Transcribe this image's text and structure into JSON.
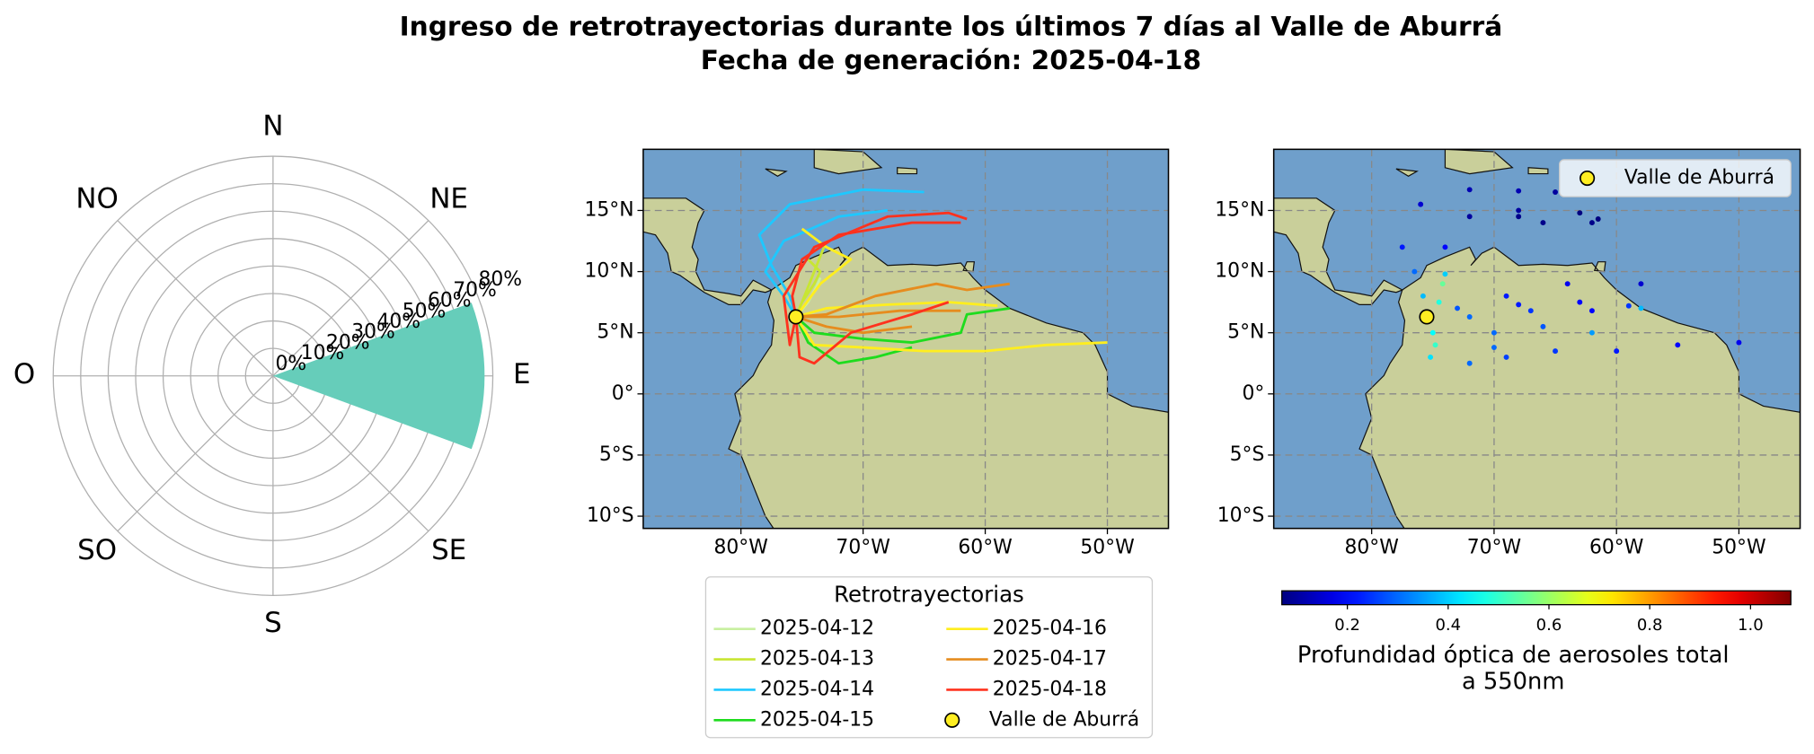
{
  "chart_data": [
    {
      "type": "polar_bar",
      "title": "Ingreso de retrotrayectorias durante los últimos 7 días al Valle de Aburrá",
      "subtitle": "Fecha de generación: 2025-04-18",
      "theta_labels": [
        "N",
        "NE",
        "E",
        "SE",
        "S",
        "SO",
        "O",
        "NO"
      ],
      "values": [
        0,
        0,
        77,
        0,
        0,
        0,
        0,
        0
      ],
      "color": "#66cdba",
      "rlim": [
        0,
        80
      ],
      "rticks": [
        {
          "value": 0,
          "label": "0%"
        },
        {
          "value": 10,
          "label": "10%"
        },
        {
          "value": 20,
          "label": "20%"
        },
        {
          "value": 30,
          "label": "30%"
        },
        {
          "value": 40,
          "label": "40%"
        },
        {
          "value": 50,
          "label": "50%"
        },
        {
          "value": 60,
          "label": "60%"
        },
        {
          "value": 70,
          "label": "70%"
        },
        {
          "value": 80,
          "label": "80%"
        }
      ],
      "grid": true
    },
    {
      "type": "trajectory_map",
      "xlim": [
        -88,
        -45
      ],
      "ylim": [
        -11,
        20
      ],
      "xticks": [
        {
          "value": -80,
          "label": "80°W"
        },
        {
          "value": -70,
          "label": "70°W"
        },
        {
          "value": -60,
          "label": "60°W"
        },
        {
          "value": -50,
          "label": "50°W"
        }
      ],
      "yticks": [
        {
          "value": 15,
          "label": "15°N"
        },
        {
          "value": 10,
          "label": "10°N"
        },
        {
          "value": 5,
          "label": "5°N"
        },
        {
          "value": 0,
          "label": "0°"
        },
        {
          "value": -5,
          "label": "5°S"
        },
        {
          "value": -10,
          "label": "10°S"
        }
      ],
      "grid": true,
      "legend_title": "Retrotrayectorias",
      "point": {
        "name": "Valle de Aburrá",
        "lon": -75.5,
        "lat": 6.3,
        "color": "#ffee22"
      },
      "series": [
        {
          "name": "2025-04-12",
          "color": "#c8f0a0",
          "trajectories": [
            {
              "lon": [
                -75.5,
                -74.5,
                -73.8,
                -73.5
              ],
              "lat": [
                6.3,
                7.5,
                8.8,
                9.5
              ]
            }
          ]
        },
        {
          "name": "2025-04-13",
          "color": "#c8e632",
          "trajectories": [
            {
              "lon": [
                -75.5,
                -75,
                -74,
                -73.5,
                -74.5
              ],
              "lat": [
                6.3,
                7.5,
                9,
                10,
                11
              ]
            },
            {
              "lon": [
                -75.5,
                -74.8,
                -74.2,
                -73.2
              ],
              "lat": [
                6.3,
                8,
                9.5,
                12
              ]
            }
          ]
        },
        {
          "name": "2025-04-14",
          "color": "#1ec8ff",
          "trajectories": [
            {
              "lon": [
                -75.5,
                -76,
                -77.5,
                -78.5,
                -76,
                -70,
                -65
              ],
              "lat": [
                6.3,
                8,
                10.5,
                13,
                15.5,
                16.7,
                16.5
              ]
            },
            {
              "lon": [
                -75.5,
                -76.5,
                -78,
                -76.5,
                -72,
                -68
              ],
              "lat": [
                6.3,
                8,
                10,
                12.5,
                14.5,
                15
              ]
            }
          ]
        },
        {
          "name": "2025-04-15",
          "color": "#1edc1e",
          "trajectories": [
            {
              "lon": [
                -75.5,
                -74,
                -70,
                -66,
                -62,
                -61.5,
                -58
              ],
              "lat": [
                6.3,
                5,
                4.5,
                4.2,
                5,
                6.5,
                7
              ]
            },
            {
              "lon": [
                -75.5,
                -74.5,
                -72,
                -69,
                -66
              ],
              "lat": [
                6.3,
                4.2,
                2.5,
                3,
                3.8
              ]
            }
          ]
        },
        {
          "name": "2025-04-16",
          "color": "#ffee1e",
          "trajectories": [
            {
              "lon": [
                -75.5,
                -74,
                -70,
                -65,
                -60,
                -55,
                -50
              ],
              "lat": [
                6.3,
                4,
                3.8,
                3.5,
                3.5,
                4,
                4.2
              ]
            },
            {
              "lon": [
                -75.5,
                -73,
                -68,
                -63,
                -59
              ],
              "lat": [
                6.3,
                7,
                7.3,
                7.5,
                7.2
              ]
            },
            {
              "lon": [
                -75.5,
                -73.5,
                -71,
                -73,
                -75
              ],
              "lat": [
                6.3,
                9,
                11,
                12,
                13.5
              ]
            }
          ]
        },
        {
          "name": "2025-04-17",
          "color": "#e68c1e",
          "trajectories": [
            {
              "lon": [
                -75.5,
                -73,
                -69,
                -64,
                -61.5,
                -58
              ],
              "lat": [
                6.3,
                6.5,
                8,
                9,
                8.5,
                9
              ]
            },
            {
              "lon": [
                -75.5,
                -72,
                -67,
                -62
              ],
              "lat": [
                6.3,
                6.3,
                6.8,
                6.8
              ]
            },
            {
              "lon": [
                -75.5,
                -73,
                -70,
                -66
              ],
              "lat": [
                6.3,
                5.5,
                5,
                5.5
              ]
            }
          ]
        },
        {
          "name": "2025-04-18",
          "color": "#ff321e",
          "trajectories": [
            {
              "lon": [
                -75.5,
                -76,
                -76.5,
                -74,
                -68,
                -63,
                -61.5
              ],
              "lat": [
                6.3,
                4,
                8,
                12,
                14.5,
                14.8,
                14.3
              ]
            },
            {
              "lon": [
                -75.5,
                -75.8,
                -75,
                -72,
                -66,
                -62
              ],
              "lat": [
                6.3,
                8,
                11,
                13,
                14,
                14
              ]
            },
            {
              "lon": [
                -75.5,
                -75.2,
                -74,
                -71,
                -66,
                -63
              ],
              "lat": [
                6.3,
                3,
                2.5,
                5,
                6.5,
                7.5
              ]
            }
          ]
        }
      ]
    },
    {
      "type": "aod_map",
      "xlim": [
        -88,
        -45
      ],
      "ylim": [
        -11,
        20
      ],
      "xticks": [
        {
          "value": -80,
          "label": "80°W"
        },
        {
          "value": -70,
          "label": "70°W"
        },
        {
          "value": -60,
          "label": "60°W"
        },
        {
          "value": -50,
          "label": "50°W"
        }
      ],
      "yticks": [
        {
          "value": 15,
          "label": "15°N"
        },
        {
          "value": 10,
          "label": "10°N"
        },
        {
          "value": 5,
          "label": "5°N"
        },
        {
          "value": 0,
          "label": "0°"
        },
        {
          "value": -5,
          "label": "5°S"
        },
        {
          "value": -10,
          "label": "10°S"
        }
      ],
      "grid": true,
      "legend_corner": "upper right",
      "point": {
        "name": "Valle de Aburrá",
        "lon": -75.5,
        "lat": 6.3,
        "color": "#ffee22"
      },
      "points": {
        "lon": [
          -75,
          -74.8,
          -75.2,
          -74.5,
          -74.2,
          -74,
          -75.8,
          -76.5,
          -77.5,
          -76,
          -72,
          -68,
          -65,
          -72,
          -68,
          -74,
          -68,
          -63,
          -61.5,
          -66,
          -62,
          -72,
          -67,
          -62,
          -73,
          -68,
          -63,
          -59,
          -69,
          -64,
          -58,
          -70,
          -65,
          -60,
          -55,
          -50,
          -70,
          -66,
          -62,
          -58,
          -72,
          -69
        ],
        "lat": [
          5,
          4,
          3,
          7.5,
          9,
          9.8,
          8,
          10,
          12,
          15.5,
          16.7,
          16.6,
          16.5,
          14.5,
          15,
          12,
          14.5,
          14.8,
          14.3,
          14,
          14,
          6.3,
          6.8,
          6.8,
          7,
          7.3,
          7.5,
          7.2,
          8,
          9,
          9,
          3.8,
          3.5,
          3.5,
          4,
          4.2,
          5,
          5.5,
          5,
          7,
          2.5,
          3
        ],
        "aod": [
          0.45,
          0.5,
          0.42,
          0.48,
          0.55,
          0.4,
          0.38,
          0.3,
          0.22,
          0.15,
          0.12,
          0.12,
          0.1,
          0.1,
          0.1,
          0.2,
          0.08,
          0.07,
          0.07,
          0.08,
          0.08,
          0.3,
          0.25,
          0.2,
          0.28,
          0.22,
          0.2,
          0.25,
          0.22,
          0.18,
          0.15,
          0.3,
          0.25,
          0.22,
          0.2,
          0.18,
          0.3,
          0.28,
          0.35,
          0.38,
          0.3,
          0.26
        ]
      },
      "colormap": "jet",
      "clim": [
        0.07,
        1.08
      ],
      "cticks": [
        0.2,
        0.4,
        0.6,
        0.8,
        {
          "value": 1,
          "label": "1.0"
        }
      ],
      "colorbar_label": [
        "Profundidad óptica de aerosoles total",
        "a 550nm"
      ]
    }
  ]
}
